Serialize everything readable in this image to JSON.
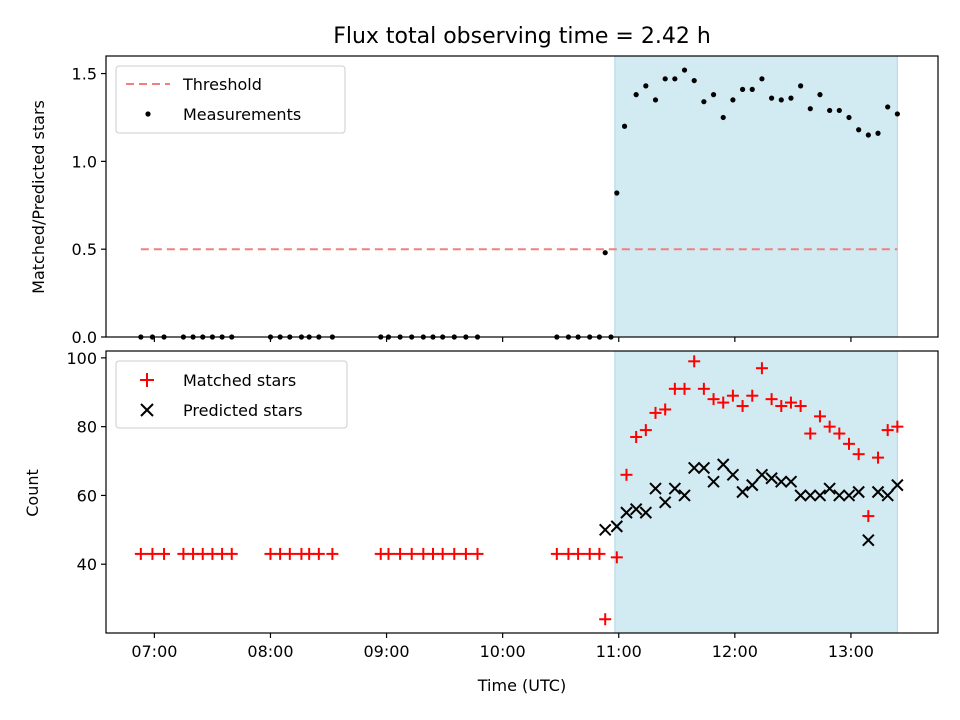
{
  "chart_data": [
    {
      "type": "scatter",
      "title": "Flux total observing time = 2.42 h",
      "xlabel": "",
      "ylabel": "Matched/Predicted stars",
      "xlim": [
        "06:35",
        "13:45"
      ],
      "ylim": [
        0.0,
        1.6
      ],
      "yticks": [
        "0.0",
        "0.5",
        "1.0",
        "1.5"
      ],
      "shaded_interval": [
        "10:58",
        "13:24"
      ],
      "shade_color": "#add8e6",
      "legend_position": "upper-left",
      "threshold": {
        "name": "Threshold",
        "value": 0.5,
        "x_range": [
          "06:53",
          "13:24"
        ],
        "color": "#f08080"
      },
      "series": [
        {
          "name": "Measurements",
          "color": "#000000",
          "points": [
            [
              "06:53",
              0
            ],
            [
              "06:59",
              0
            ],
            [
              "07:05",
              0
            ],
            [
              "07:15",
              0
            ],
            [
              "07:20",
              0
            ],
            [
              "07:25",
              0
            ],
            [
              "07:30",
              0
            ],
            [
              "07:35",
              0
            ],
            [
              "07:40",
              0
            ],
            [
              "08:00",
              0
            ],
            [
              "08:05",
              0
            ],
            [
              "08:10",
              0
            ],
            [
              "08:16",
              0
            ],
            [
              "08:20",
              0
            ],
            [
              "08:25",
              0
            ],
            [
              "08:32",
              0
            ],
            [
              "08:57",
              0
            ],
            [
              "09:01",
              0
            ],
            [
              "09:07",
              0
            ],
            [
              "09:13",
              0
            ],
            [
              "09:19",
              0
            ],
            [
              "09:24",
              0
            ],
            [
              "09:29",
              0
            ],
            [
              "09:35",
              0
            ],
            [
              "09:41",
              0
            ],
            [
              "09:47",
              0
            ],
            [
              "10:28",
              0
            ],
            [
              "10:34",
              0
            ],
            [
              "10:39",
              0
            ],
            [
              "10:45",
              0
            ],
            [
              "10:50",
              0
            ],
            [
              "10:56",
              0
            ],
            [
              "10:53",
              0.48
            ],
            [
              "10:59",
              0.82
            ],
            [
              "11:03",
              1.2
            ],
            [
              "11:09",
              1.38
            ],
            [
              "11:14",
              1.43
            ],
            [
              "11:19",
              1.35
            ],
            [
              "11:24",
              1.47
            ],
            [
              "11:29",
              1.47
            ],
            [
              "11:34",
              1.52
            ],
            [
              "11:39",
              1.46
            ],
            [
              "11:44",
              1.34
            ],
            [
              "11:49",
              1.38
            ],
            [
              "11:54",
              1.25
            ],
            [
              "11:59",
              1.35
            ],
            [
              "12:04",
              1.41
            ],
            [
              "12:09",
              1.41
            ],
            [
              "12:14",
              1.47
            ],
            [
              "12:19",
              1.36
            ],
            [
              "12:24",
              1.35
            ],
            [
              "12:29",
              1.36
            ],
            [
              "12:34",
              1.43
            ],
            [
              "12:39",
              1.3
            ],
            [
              "12:44",
              1.38
            ],
            [
              "12:49",
              1.29
            ],
            [
              "12:54",
              1.29
            ],
            [
              "12:59",
              1.25
            ],
            [
              "13:04",
              1.18
            ],
            [
              "13:09",
              1.15
            ],
            [
              "13:14",
              1.16
            ],
            [
              "13:19",
              1.31
            ],
            [
              "13:24",
              1.27
            ]
          ]
        }
      ]
    },
    {
      "type": "scatter",
      "xlabel": "Time (UTC)",
      "ylabel": "Count",
      "xlim": [
        "06:35",
        "13:45"
      ],
      "ylim": [
        20,
        102
      ],
      "yticks": [
        "40",
        "60",
        "80",
        "100"
      ],
      "xticks": [
        "07:00",
        "08:00",
        "09:00",
        "10:00",
        "11:00",
        "12:00",
        "13:00"
      ],
      "shaded_interval": [
        "10:58",
        "13:24"
      ],
      "shade_color": "#add8e6",
      "legend_position": "upper-left",
      "series": [
        {
          "name": "Matched stars",
          "marker": "plus",
          "color": "#ff0000",
          "points": [
            [
              "06:53",
              43
            ],
            [
              "06:59",
              43
            ],
            [
              "07:05",
              43
            ],
            [
              "07:15",
              43
            ],
            [
              "07:20",
              43
            ],
            [
              "07:25",
              43
            ],
            [
              "07:30",
              43
            ],
            [
              "07:35",
              43
            ],
            [
              "07:40",
              43
            ],
            [
              "08:00",
              43
            ],
            [
              "08:05",
              43
            ],
            [
              "08:10",
              43
            ],
            [
              "08:16",
              43
            ],
            [
              "08:20",
              43
            ],
            [
              "08:25",
              43
            ],
            [
              "08:32",
              43
            ],
            [
              "08:57",
              43
            ],
            [
              "09:01",
              43
            ],
            [
              "09:07",
              43
            ],
            [
              "09:13",
              43
            ],
            [
              "09:19",
              43
            ],
            [
              "09:24",
              43
            ],
            [
              "09:29",
              43
            ],
            [
              "09:35",
              43
            ],
            [
              "09:41",
              43
            ],
            [
              "09:47",
              43
            ],
            [
              "10:28",
              43
            ],
            [
              "10:34",
              43
            ],
            [
              "10:39",
              43
            ],
            [
              "10:45",
              43
            ],
            [
              "10:50",
              43
            ],
            [
              "10:53",
              24
            ],
            [
              "10:59",
              42
            ],
            [
              "11:04",
              66
            ],
            [
              "11:09",
              77
            ],
            [
              "11:14",
              79
            ],
            [
              "11:19",
              84
            ],
            [
              "11:24",
              85
            ],
            [
              "11:29",
              91
            ],
            [
              "11:34",
              91
            ],
            [
              "11:39",
              99
            ],
            [
              "11:44",
              91
            ],
            [
              "11:49",
              88
            ],
            [
              "11:54",
              87
            ],
            [
              "11:59",
              89
            ],
            [
              "12:04",
              86
            ],
            [
              "12:09",
              89
            ],
            [
              "12:14",
              97
            ],
            [
              "12:19",
              88
            ],
            [
              "12:24",
              86
            ],
            [
              "12:29",
              87
            ],
            [
              "12:34",
              86
            ],
            [
              "12:39",
              78
            ],
            [
              "12:44",
              83
            ],
            [
              "12:49",
              80
            ],
            [
              "12:54",
              78
            ],
            [
              "12:59",
              75
            ],
            [
              "13:04",
              72
            ],
            [
              "13:09",
              54
            ],
            [
              "13:14",
              71
            ],
            [
              "13:19",
              79
            ],
            [
              "13:24",
              80
            ]
          ]
        },
        {
          "name": "Predicted stars",
          "marker": "x",
          "color": "#000000",
          "points": [
            [
              "10:53",
              50
            ],
            [
              "10:59",
              51
            ],
            [
              "11:04",
              55
            ],
            [
              "11:09",
              56
            ],
            [
              "11:14",
              55
            ],
            [
              "11:19",
              62
            ],
            [
              "11:24",
              58
            ],
            [
              "11:29",
              62
            ],
            [
              "11:34",
              60
            ],
            [
              "11:39",
              68
            ],
            [
              "11:44",
              68
            ],
            [
              "11:49",
              64
            ],
            [
              "11:54",
              69
            ],
            [
              "11:59",
              66
            ],
            [
              "12:04",
              61
            ],
            [
              "12:09",
              63
            ],
            [
              "12:14",
              66
            ],
            [
              "12:19",
              65
            ],
            [
              "12:24",
              64
            ],
            [
              "12:29",
              64
            ],
            [
              "12:34",
              60
            ],
            [
              "12:39",
              60
            ],
            [
              "12:44",
              60
            ],
            [
              "12:49",
              62
            ],
            [
              "12:54",
              60
            ],
            [
              "12:59",
              60
            ],
            [
              "13:04",
              61
            ],
            [
              "13:09",
              47
            ],
            [
              "13:14",
              61
            ],
            [
              "13:19",
              60
            ],
            [
              "13:24",
              63
            ]
          ]
        }
      ]
    }
  ]
}
